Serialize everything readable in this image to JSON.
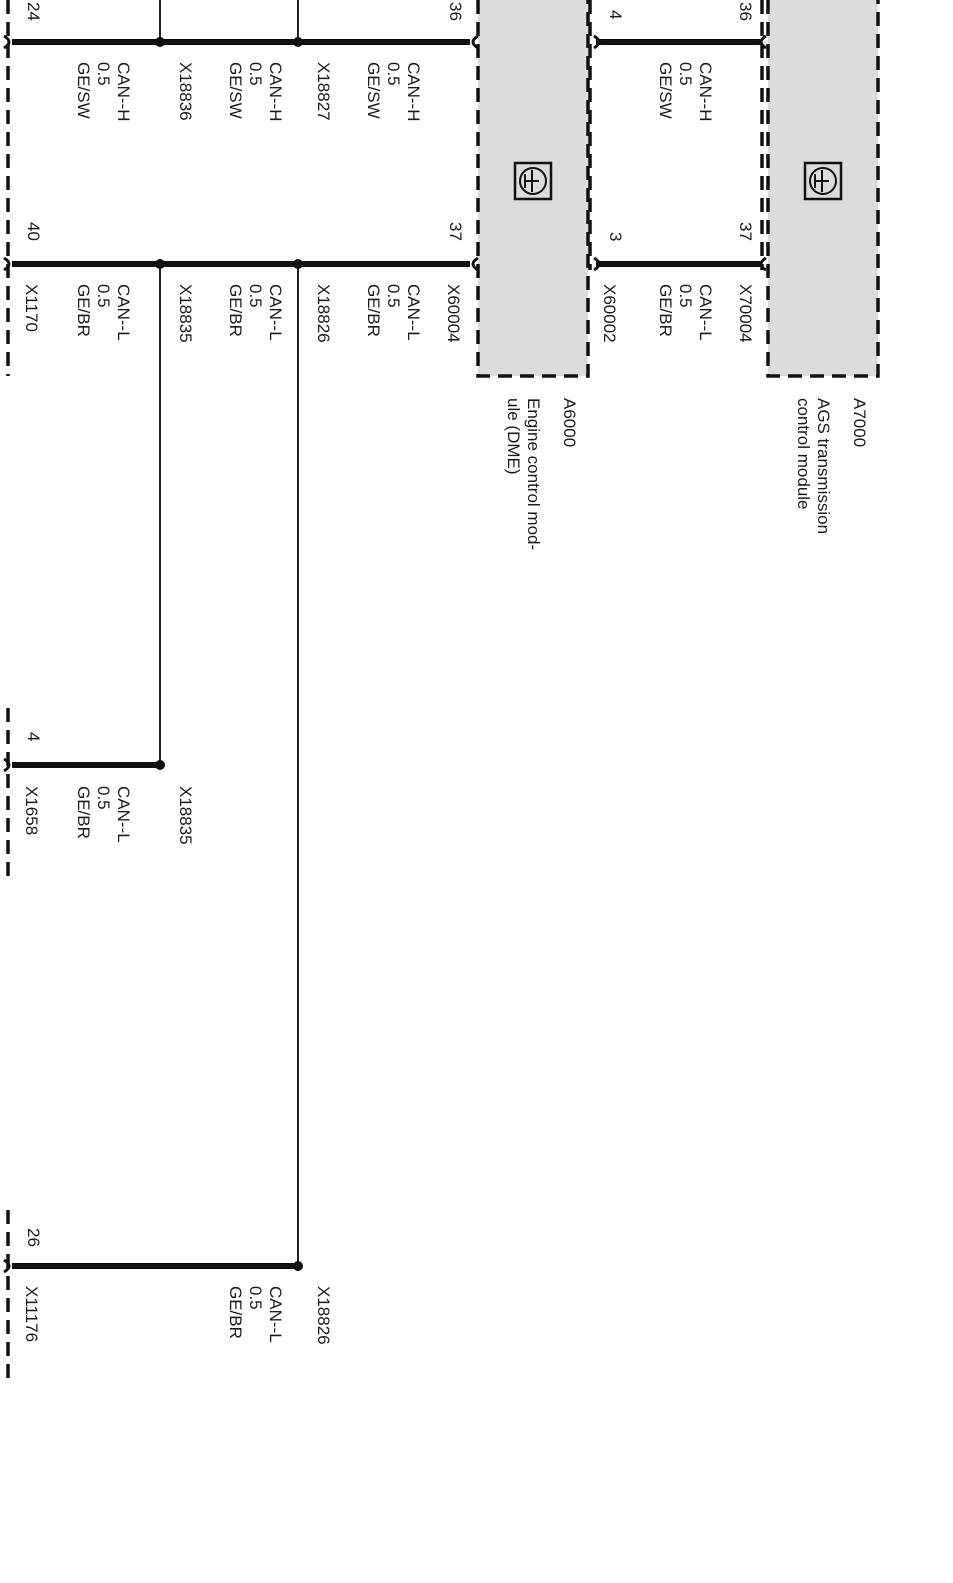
{
  "modules": {
    "a6000": {
      "id": "A6000",
      "name_line1": "Engine control mod-",
      "name_line2": "ule (DME)"
    },
    "a7000": {
      "id": "A7000",
      "name_line1": "AGS transmission",
      "name_line2": "control module"
    }
  },
  "connectors": {
    "x60004": "X60004",
    "x60002": "X60002",
    "x70004": "X70004",
    "x1170": "X1170",
    "x1658": "X1658",
    "x11176": "X11176"
  },
  "pins": {
    "x1170_h": "24",
    "x1170_l": "40",
    "a6000_h": "36",
    "a6000_l": "37",
    "a7000_left_h": "4",
    "a7000_left_l": "3",
    "a7000_right_h": "36",
    "a7000_right_l": "37",
    "x1658": "4",
    "x11176": "26"
  },
  "wires": {
    "can_h": [
      {
        "signal": "CAN--H",
        "size": "0.5",
        "color": "GE/SW",
        "splice": ""
      },
      {
        "signal": "CAN--H",
        "size": "0.5",
        "color": "GE/SW",
        "splice": "X18836"
      },
      {
        "signal": "CAN--H",
        "size": "0.5",
        "color": "GE/SW",
        "splice": "X18827"
      },
      {
        "signal": "CAN--H",
        "size": "0.5",
        "color": "GE/SW",
        "splice": ""
      }
    ],
    "can_l": [
      {
        "signal": "CAN--L",
        "size": "0.5",
        "color": "GE/BR",
        "splice": ""
      },
      {
        "signal": "CAN--L",
        "size": "0.5",
        "color": "GE/BR",
        "splice": "X18835"
      },
      {
        "signal": "CAN--L",
        "size": "0.5",
        "color": "GE/BR",
        "splice": "X18826"
      },
      {
        "signal": "CAN--L",
        "size": "0.5",
        "color": "GE/BR",
        "splice": ""
      }
    ],
    "x1658": {
      "signal": "CAN--L",
      "size": "0.5",
      "color": "GE/BR",
      "splice": "X18835"
    },
    "x11176": {
      "signal": "CAN--L",
      "size": "0.5",
      "color": "GE/BR",
      "splice": "X18826"
    }
  }
}
